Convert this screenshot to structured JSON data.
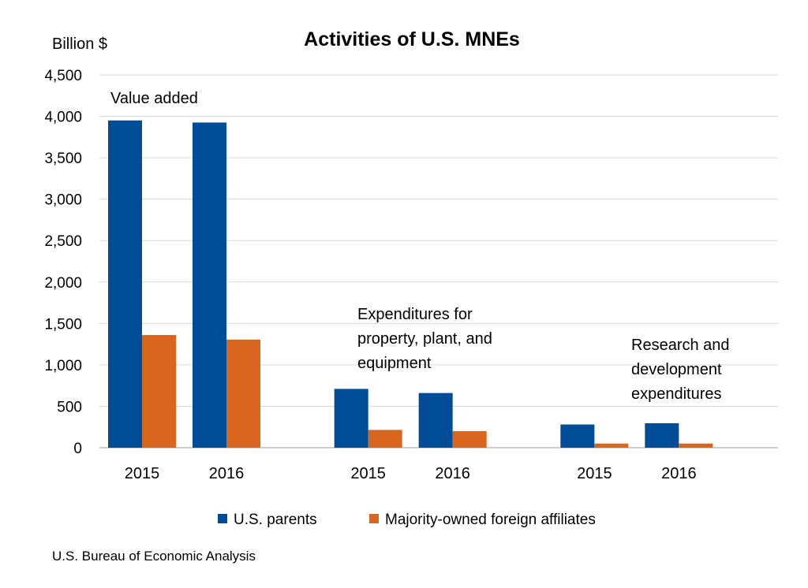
{
  "chart_data": {
    "type": "bar",
    "title": "Activities of U.S. MNEs",
    "ylabel": "Billion $",
    "xlabel": "",
    "ylim": [
      0,
      4500
    ],
    "yticks": [
      0,
      500,
      1000,
      1500,
      2000,
      2500,
      3000,
      3500,
      4000,
      4500
    ],
    "ytick_labels": [
      "0",
      "500",
      "1,000",
      "1,500",
      "2,000",
      "2,500",
      "3,000",
      "3,500",
      "4,000",
      "4,500"
    ],
    "grid": true,
    "legend_position": "bottom",
    "groups": [
      {
        "label_lines": [
          "Value added"
        ],
        "categories": [
          "2015",
          "2016"
        ]
      },
      {
        "label_lines": [
          "Expenditures for",
          "property, plant, and",
          "equipment"
        ],
        "categories": [
          "2015",
          "2016"
        ]
      },
      {
        "label_lines": [
          "Research and",
          "development",
          "expenditures"
        ],
        "categories": [
          "2015",
          "2016"
        ]
      }
    ],
    "series": [
      {
        "name": "U.S. parents",
        "color": "#004C97",
        "values": [
          [
            3950,
            3925
          ],
          [
            710,
            660
          ],
          [
            280,
            295
          ]
        ]
      },
      {
        "name": "Majority-owned foreign affiliates",
        "color": "#D9661F",
        "values": [
          [
            1360,
            1305
          ],
          [
            215,
            200
          ],
          [
            50,
            50
          ]
        ]
      }
    ]
  },
  "source": "U.S. Bureau of Economic Analysis"
}
